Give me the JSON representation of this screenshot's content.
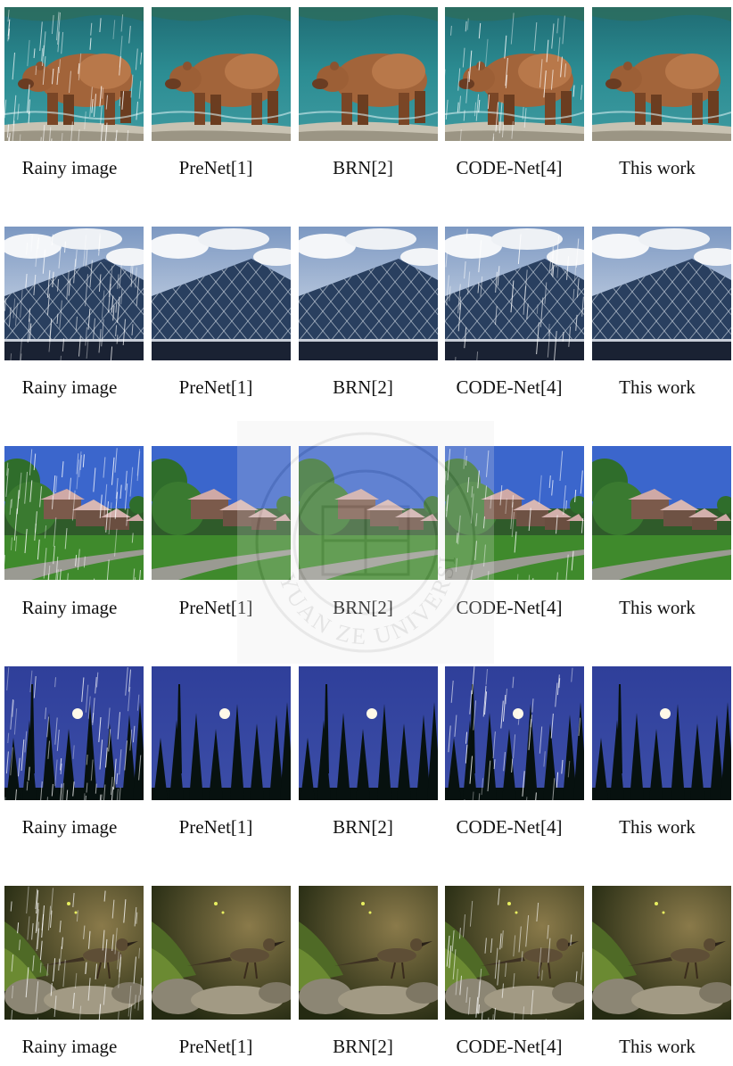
{
  "figure": {
    "columns": [
      "Rainy image",
      "PreNet[1]",
      "BRN[2]",
      "CODE-Net[4]",
      "This work"
    ],
    "rows": [
      {
        "scene": "bear-in-water"
      },
      {
        "scene": "glass-pyramid"
      },
      {
        "scene": "houses-lawn"
      },
      {
        "scene": "moon-night-trees"
      },
      {
        "scene": "roadrunner-rocks"
      }
    ],
    "rain_columns": [
      0,
      3
    ],
    "watermark": {
      "text": "YUAN ZE UNIVERSITY",
      "icon": "university-seal"
    }
  }
}
